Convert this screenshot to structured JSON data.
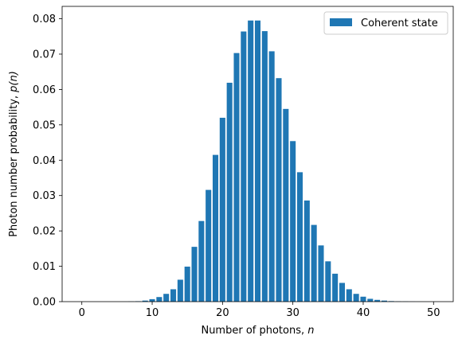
{
  "chart_data": {
    "type": "bar",
    "x": [
      0,
      1,
      2,
      3,
      4,
      5,
      6,
      7,
      8,
      9,
      10,
      11,
      12,
      13,
      14,
      15,
      16,
      17,
      18,
      19,
      20,
      21,
      22,
      23,
      24,
      25,
      26,
      27,
      28,
      29,
      30,
      31,
      32,
      33,
      34,
      35,
      36,
      37,
      38,
      39,
      40,
      41,
      42,
      43,
      44,
      45,
      46,
      47,
      48,
      49,
      50
    ],
    "series": [
      {
        "name": "Coherent state",
        "color": "#1f77b4",
        "values": [
          0.0,
          0.0,
          0.0,
          0.0,
          0.0,
          0.0,
          1e-05,
          5e-05,
          0.00012,
          0.0003,
          0.0007,
          0.0013,
          0.0022,
          0.0035,
          0.0062,
          0.0099,
          0.0155,
          0.0228,
          0.0316,
          0.0415,
          0.052,
          0.0619,
          0.0703,
          0.0764,
          0.0795,
          0.0795,
          0.0765,
          0.0708,
          0.0632,
          0.0545,
          0.0454,
          0.0366,
          0.0286,
          0.0217,
          0.0159,
          0.0114,
          0.0079,
          0.0053,
          0.0035,
          0.0022,
          0.0014,
          0.0008,
          0.0005,
          0.0003,
          0.00015,
          8e-05,
          5e-05,
          2e-05,
          1e-05,
          0.0,
          0.0
        ]
      }
    ],
    "xlabel_text": "Number of photons, ",
    "xlabel_var": "n",
    "ylabel_text": "Photon number probability, ",
    "ylabel_var": "p(n)",
    "xlim": [
      -2.8,
      52.8
    ],
    "ylim": [
      0,
      0.0835
    ],
    "xticks": [
      0,
      10,
      20,
      30,
      40,
      50
    ],
    "xtick_labels": [
      "0",
      "10",
      "20",
      "30",
      "40",
      "50"
    ],
    "yticks": [
      0,
      0.01,
      0.02,
      0.03,
      0.04,
      0.05,
      0.06,
      0.07,
      0.08
    ],
    "ytick_labels": [
      "0.00",
      "0.01",
      "0.02",
      "0.03",
      "0.04",
      "0.05",
      "0.06",
      "0.07",
      "0.08"
    ],
    "grid": false,
    "legend_position": "upper right"
  }
}
